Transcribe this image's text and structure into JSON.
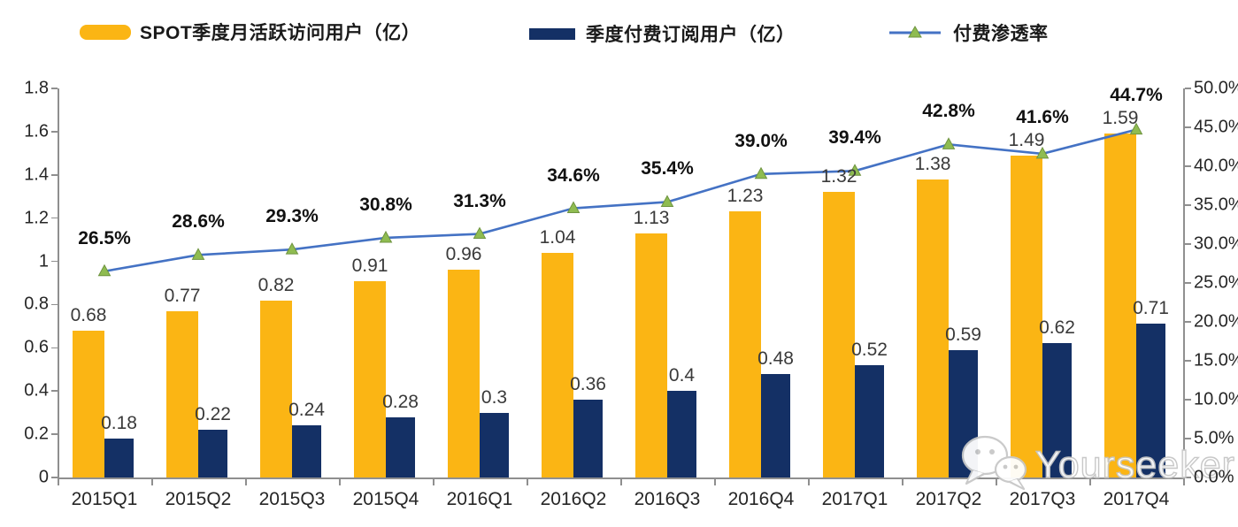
{
  "legend": {
    "items": [
      {
        "label": "SPOT季度月活跃访问用户（亿）",
        "swatch": "bar-rounded",
        "color": "#FBB514"
      },
      {
        "label": "季度付费订阅用户（亿）",
        "swatch": "bar-flat",
        "color": "#143065"
      },
      {
        "label": "付费渗透率",
        "swatch": "line-triangle",
        "color": "#4472C4",
        "marker_color": "#8FBC51"
      }
    ]
  },
  "chart_data": {
    "type": "bar+line",
    "categories": [
      "2015Q1",
      "2015Q2",
      "2015Q3",
      "2015Q4",
      "2016Q1",
      "2016Q2",
      "2016Q3",
      "2016Q4",
      "2017Q1",
      "2017Q2",
      "2017Q3",
      "2017Q4"
    ],
    "series": [
      {
        "name": "SPOT季度月活跃访问用户（亿）",
        "type": "bar",
        "axis": "left",
        "color": "#FBB514",
        "values": [
          0.68,
          0.77,
          0.82,
          0.91,
          0.96,
          1.04,
          1.13,
          1.23,
          1.32,
          1.38,
          1.49,
          1.59
        ],
        "labels": [
          "0.68",
          "0.77",
          "0.82",
          "0.91",
          "0.96",
          "1.04",
          "1.13",
          "1.23",
          "1.32",
          "1.38",
          "1.49",
          "1.59"
        ]
      },
      {
        "name": "季度付费订阅用户（亿）",
        "type": "bar",
        "axis": "left",
        "color": "#143065",
        "values": [
          0.18,
          0.22,
          0.24,
          0.28,
          0.3,
          0.36,
          0.4,
          0.48,
          0.52,
          0.59,
          0.62,
          0.71
        ],
        "labels": [
          "0.18",
          "0.22",
          "0.24",
          "0.28",
          "0.3",
          "0.36",
          "0.4",
          "0.48",
          "0.52",
          "0.59",
          "0.62",
          "0.71"
        ]
      },
      {
        "name": "付费渗透率",
        "type": "line",
        "axis": "right",
        "color": "#4472C4",
        "marker": "triangle",
        "marker_color": "#8FBC51",
        "marker_edge_color": "#6F9440",
        "values": [
          26.5,
          28.6,
          29.3,
          30.8,
          31.3,
          34.6,
          35.4,
          39.0,
          39.4,
          42.8,
          41.6,
          44.7
        ],
        "labels": [
          "26.5%",
          "28.6%",
          "29.3%",
          "30.8%",
          "31.3%",
          "34.6%",
          "35.4%",
          "39.0%",
          "39.4%",
          "42.8%",
          "41.6%",
          "44.7%"
        ]
      }
    ],
    "left_axis": {
      "min": 0,
      "max": 1.8,
      "tick_labels": [
        "0",
        "0.2",
        "0.4",
        "0.6",
        "0.8",
        "1",
        "1.2",
        "1.4",
        "1.6",
        "1.8"
      ]
    },
    "right_axis": {
      "min": 0,
      "max": 50,
      "tick_labels": [
        "0.0%",
        "5.0%",
        "10.0%",
        "15.0%",
        "20.0%",
        "25.0%",
        "30.0%",
        "35.0%",
        "40.0%",
        "45.0%",
        "50.0%"
      ]
    },
    "grid": false,
    "legend_position": "top"
  },
  "watermark": {
    "text": "Yourseeker",
    "icon": "wechat-icon"
  }
}
